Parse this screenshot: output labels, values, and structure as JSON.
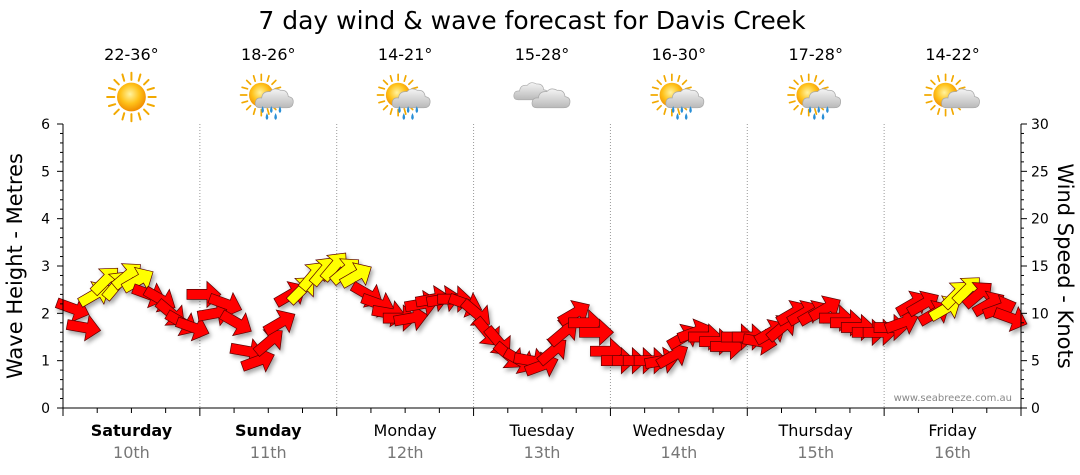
{
  "chart_data": {
    "type": "line",
    "title": "7 day wind & wave forecast for Davis Creek",
    "ylabel_left": "Wave Height - Metres",
    "ylabel_right": "Wind Speed - Knots",
    "ylim_left": [
      0,
      6
    ],
    "ylim_right": [
      0,
      30
    ],
    "yticks_left": [
      "0",
      "1",
      "2",
      "3",
      "4",
      "5",
      "6"
    ],
    "yticks_right": [
      "0",
      "5",
      "10",
      "15",
      "20",
      "25",
      "30"
    ],
    "grid": true,
    "credit": "www.seabreeze.com.au",
    "days": [
      {
        "name": "Saturday",
        "date": "10th",
        "temp": "22-36°",
        "icon": "sunny-icon",
        "bold": true
      },
      {
        "name": "Sunday",
        "date": "11th",
        "temp": "18-26°",
        "icon": "sun-showers-icon",
        "bold": true
      },
      {
        "name": "Monday",
        "date": "12th",
        "temp": "14-21°",
        "icon": "sun-showers-icon",
        "bold": false
      },
      {
        "name": "Tuesday",
        "date": "13th",
        "temp": "15-28°",
        "icon": "cloudy-icon",
        "bold": false
      },
      {
        "name": "Wednesday",
        "date": "14th",
        "temp": "16-30°",
        "icon": "sun-showers-icon",
        "bold": false
      },
      {
        "name": "Thursday",
        "date": "15th",
        "temp": "17-28°",
        "icon": "sun-showers-icon",
        "bold": false
      },
      {
        "name": "Friday",
        "date": "16th",
        "temp": "14-22°",
        "icon": "partly-cloudy-icon",
        "bold": false
      }
    ],
    "wind_series": {
      "name": "Wind Speed",
      "unit": "knots",
      "speeds": [
        10.5,
        8.5,
        12,
        13.5,
        13,
        14,
        13.5,
        12,
        11.5,
        10,
        9,
        8.5,
        12,
        10,
        11,
        9,
        6,
        5,
        7,
        9,
        12,
        12.5,
        14,
        14.5,
        15,
        14.5,
        14,
        12,
        11,
        10,
        9.5,
        9.5,
        11,
        11.5,
        11.5,
        11.5,
        11,
        10,
        8,
        7,
        5.5,
        5,
        5,
        4.5,
        6,
        8,
        10,
        9,
        8,
        6,
        5,
        5,
        5,
        5,
        5,
        5.5,
        7.5,
        8,
        7.5,
        7,
        6.5,
        7.5,
        7.5,
        7,
        8,
        8.5,
        10,
        10,
        10,
        10.5,
        9.5,
        9,
        8.5,
        8,
        8,
        8.5,
        9,
        11,
        11,
        10,
        10.5,
        12,
        12.5,
        12,
        11,
        10.5,
        9.5
      ],
      "directions": [
        110,
        100,
        60,
        45,
        40,
        50,
        60,
        110,
        120,
        130,
        120,
        110,
        90,
        80,
        110,
        120,
        100,
        70,
        50,
        60,
        60,
        45,
        40,
        40,
        40,
        50,
        60,
        120,
        110,
        100,
        90,
        80,
        80,
        80,
        80,
        90,
        110,
        130,
        140,
        140,
        130,
        120,
        100,
        70,
        50,
        50,
        60,
        90,
        90,
        90,
        90,
        90,
        90,
        90,
        80,
        60,
        60,
        70,
        90,
        90,
        90,
        90,
        90,
        100,
        60,
        50,
        60,
        60,
        60,
        60,
        90,
        90,
        90,
        90,
        90,
        90,
        70,
        60,
        60,
        60,
        60,
        45,
        45,
        50,
        60,
        70,
        110
      ],
      "gust_flags": [
        0,
        0,
        1,
        1,
        1,
        1,
        1,
        0,
        0,
        0,
        0,
        0,
        0,
        0,
        0,
        0,
        0,
        0,
        0,
        0,
        0,
        1,
        1,
        1,
        1,
        1,
        1,
        0,
        0,
        0,
        0,
        0,
        0,
        0,
        0,
        0,
        0,
        0,
        0,
        0,
        0,
        0,
        0,
        0,
        0,
        0,
        0,
        0,
        0,
        0,
        0,
        0,
        0,
        0,
        0,
        0,
        0,
        0,
        0,
        0,
        0,
        0,
        0,
        0,
        0,
        0,
        0,
        0,
        0,
        0,
        0,
        0,
        0,
        0,
        0,
        0,
        0,
        0,
        0,
        0,
        1,
        1,
        1,
        0,
        0,
        0,
        0
      ]
    },
    "colors": {
      "wind_arrow": "#ff0000",
      "wind_arrow_strong": "#ffff00",
      "grid": "#999999",
      "axis": "#000000"
    }
  }
}
